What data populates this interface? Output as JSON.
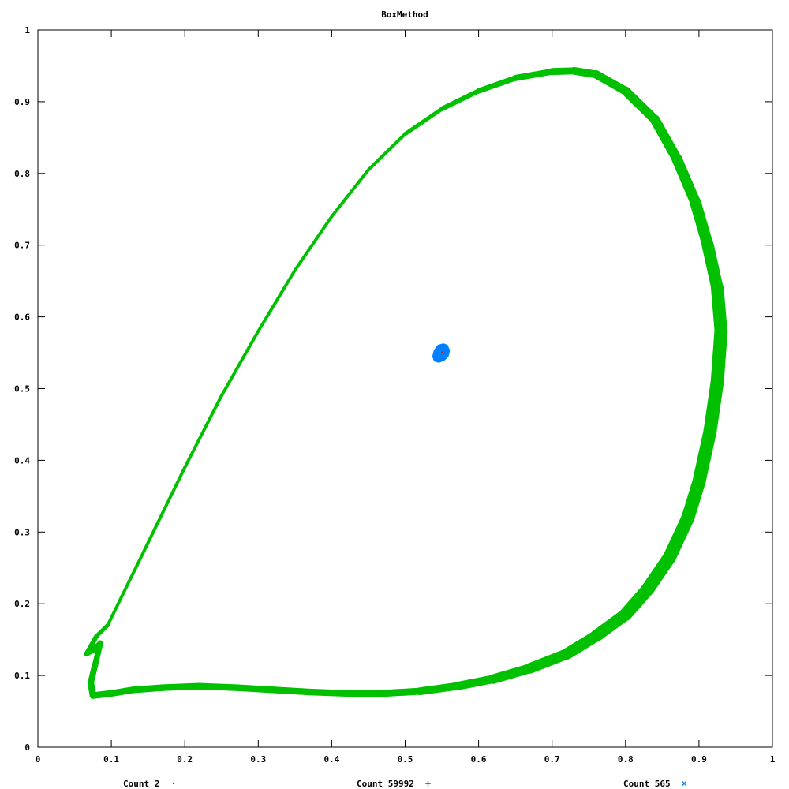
{
  "chart_data": {
    "type": "scatter",
    "title": "BoxMethod",
    "xlabel": "",
    "ylabel": "",
    "xlim": [
      0,
      1
    ],
    "ylim": [
      0,
      1
    ],
    "x_ticks": [
      "0",
      "0.1",
      "0.2",
      "0.3",
      "0.4",
      "0.5",
      "0.6",
      "0.7",
      "0.8",
      "0.9",
      "1"
    ],
    "y_ticks": [
      "0",
      "0.1",
      "0.2",
      "0.3",
      "0.4",
      "0.5",
      "0.6",
      "0.7",
      "0.8",
      "0.9",
      "1"
    ],
    "grid": false,
    "legend_position": "bottom",
    "series": [
      {
        "name": "Count 2",
        "marker": "·",
        "color": "#ff0000",
        "points": [
          [
            0.55,
            0.55
          ],
          [
            0.55,
            0.551
          ]
        ]
      },
      {
        "name": "Count 59992",
        "marker": "+",
        "color": "#00c000",
        "shape": "closed-band",
        "points": [
          [
            0.095,
            0.17
          ],
          [
            0.15,
            0.285
          ],
          [
            0.2,
            0.39
          ],
          [
            0.25,
            0.49
          ],
          [
            0.3,
            0.58
          ],
          [
            0.35,
            0.665
          ],
          [
            0.4,
            0.74
          ],
          [
            0.45,
            0.805
          ],
          [
            0.5,
            0.855
          ],
          [
            0.55,
            0.89
          ],
          [
            0.6,
            0.915
          ],
          [
            0.65,
            0.933
          ],
          [
            0.7,
            0.942
          ],
          [
            0.73,
            0.943
          ],
          [
            0.76,
            0.938
          ],
          [
            0.8,
            0.915
          ],
          [
            0.84,
            0.875
          ],
          [
            0.87,
            0.82
          ],
          [
            0.895,
            0.76
          ],
          [
            0.912,
            0.7
          ],
          [
            0.925,
            0.64
          ],
          [
            0.93,
            0.58
          ],
          [
            0.925,
            0.51
          ],
          [
            0.915,
            0.44
          ],
          [
            0.9,
            0.37
          ],
          [
            0.885,
            0.32
          ],
          [
            0.86,
            0.265
          ],
          [
            0.83,
            0.22
          ],
          [
            0.8,
            0.185
          ],
          [
            0.76,
            0.155
          ],
          [
            0.72,
            0.13
          ],
          [
            0.67,
            0.11
          ],
          [
            0.62,
            0.095
          ],
          [
            0.57,
            0.085
          ],
          [
            0.52,
            0.078
          ],
          [
            0.47,
            0.075
          ],
          [
            0.42,
            0.075
          ],
          [
            0.37,
            0.077
          ],
          [
            0.32,
            0.08
          ],
          [
            0.27,
            0.083
          ],
          [
            0.22,
            0.085
          ],
          [
            0.17,
            0.083
          ],
          [
            0.13,
            0.08
          ],
          [
            0.1,
            0.075
          ],
          [
            0.075,
            0.072
          ],
          [
            0.072,
            0.09
          ],
          [
            0.078,
            0.115
          ],
          [
            0.085,
            0.145
          ],
          [
            0.075,
            0.135
          ],
          [
            0.066,
            0.13
          ],
          [
            0.08,
            0.155
          ],
          [
            0.095,
            0.17
          ]
        ],
        "band_width": [
          0.004,
          0.004,
          0.004,
          0.004,
          0.004,
          0.004,
          0.004,
          0.004,
          0.005,
          0.006,
          0.007,
          0.008,
          0.009,
          0.01,
          0.011,
          0.012,
          0.013,
          0.014,
          0.015,
          0.016,
          0.017,
          0.018,
          0.018,
          0.018,
          0.018,
          0.018,
          0.018,
          0.018,
          0.017,
          0.016,
          0.015,
          0.014,
          0.012,
          0.011,
          0.01,
          0.009,
          0.009,
          0.009,
          0.009,
          0.009,
          0.009,
          0.009,
          0.009,
          0.009,
          0.009,
          0.009,
          0.008,
          0.008,
          0.007,
          0.007,
          0.006,
          0.005
        ]
      },
      {
        "name": "Count 565",
        "marker": "×",
        "color": "#0080ff",
        "shape": "blob",
        "points": [
          [
            0.538,
            0.545
          ],
          [
            0.54,
            0.553
          ],
          [
            0.545,
            0.56
          ],
          [
            0.552,
            0.562
          ],
          [
            0.557,
            0.56
          ],
          [
            0.56,
            0.553
          ],
          [
            0.558,
            0.545
          ],
          [
            0.553,
            0.54
          ],
          [
            0.546,
            0.537
          ],
          [
            0.54,
            0.539
          ]
        ]
      }
    ]
  }
}
